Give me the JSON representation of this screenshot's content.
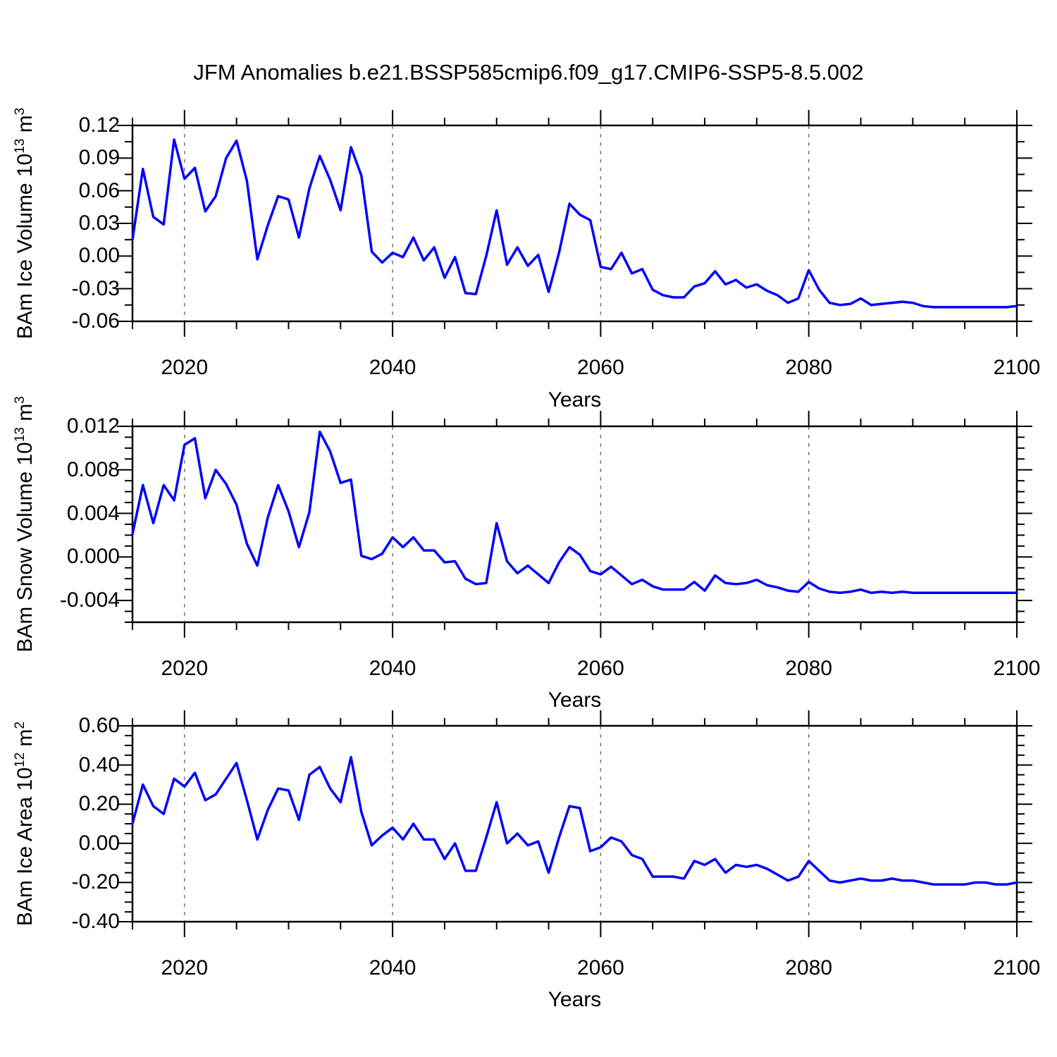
{
  "title": "JFM Anomalies b.e21.BSSP585cmip6.f09_g17.CMIP6-SSP5-8.5.002",
  "style": {
    "line_color": "#0000ff",
    "grid_color": "#777777",
    "frame_color": "#000000"
  },
  "years": [
    2015,
    2016,
    2017,
    2018,
    2019,
    2020,
    2021,
    2022,
    2023,
    2024,
    2025,
    2026,
    2027,
    2028,
    2029,
    2030,
    2031,
    2032,
    2033,
    2034,
    2035,
    2036,
    2037,
    2038,
    2039,
    2040,
    2041,
    2042,
    2043,
    2044,
    2045,
    2046,
    2047,
    2048,
    2049,
    2050,
    2051,
    2052,
    2053,
    2054,
    2055,
    2056,
    2057,
    2058,
    2059,
    2060,
    2061,
    2062,
    2063,
    2064,
    2065,
    2066,
    2067,
    2068,
    2069,
    2070,
    2071,
    2072,
    2073,
    2074,
    2075,
    2076,
    2077,
    2078,
    2079,
    2080,
    2081,
    2082,
    2083,
    2084,
    2085,
    2086,
    2087,
    2088,
    2089,
    2090,
    2091,
    2092,
    2093,
    2094,
    2095,
    2096,
    2097,
    2098,
    2099,
    2100
  ],
  "chart_data": [
    {
      "type": "line",
      "name": "bam-ice-volume",
      "xlabel": "Years",
      "ylabel_parts": [
        "BAm Ice Volume 10",
        "13",
        " m",
        "3"
      ],
      "xlim": [
        2015,
        2100
      ],
      "ylim": [
        -0.06,
        0.12
      ],
      "x_major_ticks": [
        2020,
        2040,
        2060,
        2080,
        2100
      ],
      "x_tick_labels": [
        "2020",
        "2040",
        "2060",
        "2080",
        "2100"
      ],
      "x_minor_step": 5,
      "y_major_ticks": [
        0.12,
        0.09,
        0.06,
        0.03,
        0,
        -0.03,
        -0.06
      ],
      "y_tick_labels": [
        "0.12",
        "0.09",
        "0.06",
        "0.03",
        "0.00",
        "-0.03",
        "-0.06"
      ],
      "y_minor_step": 0.015,
      "grid_years": [
        2020,
        2040,
        2060,
        2080
      ],
      "grid_on": true,
      "legend": "none",
      "values": [
        0.015,
        0.08,
        0.036,
        0.029,
        0.107,
        0.071,
        0.081,
        0.041,
        0.055,
        0.09,
        0.106,
        0.069,
        -0.003,
        0.028,
        0.055,
        0.052,
        0.017,
        0.062,
        0.092,
        0.07,
        0.042,
        0.1,
        0.074,
        0.004,
        -0.006,
        0.003,
        -0.001,
        0.017,
        -0.004,
        0.008,
        -0.02,
        -0.001,
        -0.034,
        -0.035,
        0.0,
        0.042,
        -0.008,
        0.008,
        -0.009,
        0.001,
        -0.033,
        0.003,
        0.048,
        0.038,
        0.033,
        -0.01,
        -0.012,
        0.003,
        -0.016,
        -0.012,
        -0.031,
        -0.036,
        -0.038,
        -0.038,
        -0.028,
        -0.025,
        -0.014,
        -0.026,
        -0.022,
        -0.029,
        -0.026,
        -0.032,
        -0.036,
        -0.043,
        -0.039,
        -0.013,
        -0.031,
        -0.043,
        -0.045,
        -0.044,
        -0.039,
        -0.045,
        -0.044,
        -0.043,
        -0.042,
        -0.043,
        -0.046,
        -0.047,
        -0.047,
        -0.047,
        -0.047,
        -0.047,
        -0.047,
        -0.047,
        -0.047,
        -0.046
      ]
    },
    {
      "type": "line",
      "name": "bam-snow-volume",
      "xlabel": "Years",
      "ylabel_parts": [
        "BAm Snow Volume 10",
        "13",
        " m",
        "3"
      ],
      "xlim": [
        2015,
        2100
      ],
      "ylim": [
        -0.006,
        0.012
      ],
      "x_major_ticks": [
        2020,
        2040,
        2060,
        2080,
        2100
      ],
      "x_tick_labels": [
        "2020",
        "2040",
        "2060",
        "2080",
        "2100"
      ],
      "x_minor_step": 5,
      "y_major_ticks": [
        0.012,
        0.008,
        0.004,
        0,
        -0.004
      ],
      "y_tick_labels": [
        "0.012",
        "0.008",
        "0.004",
        "0.000",
        "-0.004"
      ],
      "y_minor_step": 0.001,
      "grid_years": [
        2020,
        2040,
        2060,
        2080
      ],
      "grid_on": true,
      "legend": "none",
      "values": [
        0.0021,
        0.0066,
        0.0031,
        0.0066,
        0.0052,
        0.0103,
        0.0109,
        0.0054,
        0.008,
        0.0067,
        0.0048,
        0.0012,
        -0.0008,
        0.0036,
        0.0066,
        0.0042,
        0.0009,
        0.0041,
        0.0115,
        0.0097,
        0.0068,
        0.0071,
        0.0001,
        -0.0002,
        0.0003,
        0.0018,
        0.0009,
        0.0018,
        0.0006,
        0.0006,
        -0.0005,
        -0.0004,
        -0.002,
        -0.0025,
        -0.0024,
        0.0031,
        -0.0004,
        -0.0015,
        -0.0008,
        -0.0016,
        -0.0024,
        -0.0005,
        0.0009,
        0.0002,
        -0.0013,
        -0.0016,
        -0.0009,
        -0.0017,
        -0.0025,
        -0.0021,
        -0.0027,
        -0.003,
        -0.003,
        -0.003,
        -0.0023,
        -0.0031,
        -0.0017,
        -0.0024,
        -0.0025,
        -0.0024,
        -0.0021,
        -0.0026,
        -0.0028,
        -0.0031,
        -0.0032,
        -0.0023,
        -0.0029,
        -0.0032,
        -0.0033,
        -0.0032,
        -0.003,
        -0.0033,
        -0.0032,
        -0.0033,
        -0.0032,
        -0.0033,
        -0.0033,
        -0.0033,
        -0.0033,
        -0.0033,
        -0.0033,
        -0.0033,
        -0.0033,
        -0.0033,
        -0.0033,
        -0.0033
      ]
    },
    {
      "type": "line",
      "name": "bam-ice-area",
      "xlabel": "Years",
      "ylabel_parts": [
        "BAm Ice Area 10",
        "12",
        " m",
        "2"
      ],
      "xlim": [
        2015,
        2100
      ],
      "ylim": [
        -0.4,
        0.6
      ],
      "x_major_ticks": [
        2020,
        2040,
        2060,
        2080,
        2100
      ],
      "x_tick_labels": [
        "2020",
        "2040",
        "2060",
        "2080",
        "2100"
      ],
      "x_minor_step": 5,
      "y_major_ticks": [
        0.6,
        0.4,
        0.2,
        0,
        -0.2,
        -0.4
      ],
      "y_tick_labels": [
        "0.60",
        "0.40",
        "0.20",
        "0.00",
        "-0.20",
        "-0.40"
      ],
      "y_minor_step": 0.05,
      "grid_years": [
        2020,
        2040,
        2060,
        2080
      ],
      "grid_on": true,
      "legend": "none",
      "values": [
        0.1,
        0.3,
        0.19,
        0.15,
        0.33,
        0.29,
        0.36,
        0.22,
        0.25,
        0.33,
        0.41,
        0.22,
        0.02,
        0.17,
        0.28,
        0.27,
        0.12,
        0.35,
        0.39,
        0.28,
        0.21,
        0.44,
        0.16,
        -0.01,
        0.04,
        0.08,
        0.02,
        0.1,
        0.02,
        0.02,
        -0.08,
        0.0,
        -0.14,
        -0.14,
        0.03,
        0.21,
        0.0,
        0.05,
        -0.01,
        0.01,
        -0.15,
        0.03,
        0.19,
        0.18,
        -0.04,
        -0.02,
        0.03,
        0.01,
        -0.06,
        -0.08,
        -0.17,
        -0.17,
        -0.17,
        -0.18,
        -0.09,
        -0.11,
        -0.08,
        -0.15,
        -0.11,
        -0.12,
        -0.11,
        -0.13,
        -0.16,
        -0.19,
        -0.17,
        -0.09,
        -0.14,
        -0.19,
        -0.2,
        -0.19,
        -0.18,
        -0.19,
        -0.19,
        -0.18,
        -0.19,
        -0.19,
        -0.2,
        -0.21,
        -0.21,
        -0.21,
        -0.21,
        -0.2,
        -0.2,
        -0.21,
        -0.21,
        -0.2
      ]
    }
  ]
}
